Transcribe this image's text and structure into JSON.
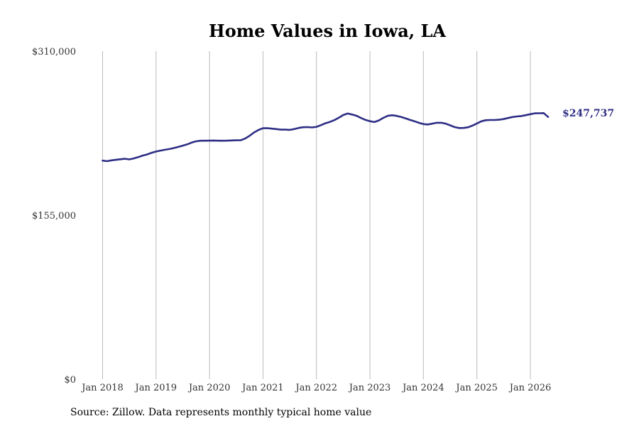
{
  "chart_data": {
    "type": "line",
    "title": "Home Values in Iowa, LA",
    "xlabel": "",
    "ylabel": "",
    "ylim": [
      0,
      310000
    ],
    "y_ticks": [
      "$0",
      "$155,000",
      "$310,000"
    ],
    "y_tick_values": [
      0,
      155000,
      310000
    ],
    "x_ticks": [
      "Jan 2018",
      "Jan 2019",
      "Jan 2020",
      "Jan 2021",
      "Jan 2022",
      "Jan 2023",
      "Jan 2024",
      "Jan 2025",
      "Jan 2026"
    ],
    "x_tick_values": [
      "2018-01",
      "2019-01",
      "2020-01",
      "2021-01",
      "2022-01",
      "2023-01",
      "2024-01",
      "2025-01",
      "2026-01"
    ],
    "grid": "vertical",
    "line_color": "#2e2e85",
    "end_label": "$247,737",
    "series": [
      {
        "name": "",
        "x": [
          "2018-01",
          "2018-02",
          "2018-03",
          "2018-04",
          "2018-05",
          "2018-06",
          "2018-07",
          "2018-08",
          "2018-09",
          "2018-10",
          "2018-11",
          "2018-12",
          "2019-01",
          "2019-02",
          "2019-03",
          "2019-04",
          "2019-05",
          "2019-06",
          "2019-07",
          "2019-08",
          "2019-09",
          "2019-10",
          "2019-11",
          "2019-12",
          "2020-01",
          "2020-02",
          "2020-03",
          "2020-04",
          "2020-05",
          "2020-06",
          "2020-07",
          "2020-08",
          "2020-09",
          "2020-10",
          "2020-11",
          "2020-12",
          "2021-01",
          "2021-02",
          "2021-03",
          "2021-04",
          "2021-05",
          "2021-06",
          "2021-07",
          "2021-08",
          "2021-09",
          "2021-10",
          "2021-11",
          "2021-12",
          "2022-01",
          "2022-02",
          "2022-03",
          "2022-04",
          "2022-05",
          "2022-06",
          "2022-07",
          "2022-08",
          "2022-09",
          "2022-10",
          "2022-11",
          "2022-12",
          "2023-01",
          "2023-02",
          "2023-03",
          "2023-04",
          "2023-05",
          "2023-06",
          "2023-07",
          "2023-08",
          "2023-09",
          "2023-10",
          "2023-11",
          "2023-12",
          "2024-01",
          "2024-02",
          "2024-03",
          "2024-04",
          "2024-05",
          "2024-06",
          "2024-07",
          "2024-08",
          "2024-09",
          "2024-10",
          "2024-11",
          "2024-12",
          "2025-01",
          "2025-02",
          "2025-03",
          "2025-04",
          "2025-05",
          "2025-06",
          "2025-07",
          "2025-08",
          "2025-09",
          "2025-10",
          "2025-11",
          "2025-12",
          "2026-01",
          "2026-02",
          "2026-03",
          "2026-04",
          "2026-05"
        ],
        "y": [
          206500,
          206000,
          206800,
          207300,
          207800,
          208300,
          207700,
          208600,
          209800,
          211300,
          212400,
          213900,
          215100,
          216000,
          216800,
          217500,
          218400,
          219500,
          220700,
          221900,
          223600,
          224800,
          225300,
          225300,
          225400,
          225500,
          225300,
          225300,
          225400,
          225600,
          225700,
          225800,
          227400,
          230000,
          233200,
          235500,
          237100,
          237200,
          236700,
          236300,
          235800,
          235800,
          235600,
          236300,
          237400,
          238100,
          238200,
          237900,
          238500,
          240000,
          241800,
          243100,
          244800,
          247000,
          249600,
          251000,
          250100,
          248900,
          246800,
          245000,
          243800,
          243000,
          244500,
          246900,
          248900,
          249400,
          248800,
          247700,
          246400,
          245000,
          243700,
          242200,
          241000,
          240700,
          241500,
          242300,
          242300,
          241400,
          239900,
          238200,
          237300,
          237400,
          238000,
          239600,
          241600,
          243700,
          244700,
          244900,
          244900,
          245200,
          245800,
          246800,
          247700,
          248300,
          248700,
          249500,
          250400,
          251200,
          251300,
          251400,
          247737
        ]
      }
    ]
  },
  "source_text": "Source: Zillow. Data represents monthly typical home value"
}
